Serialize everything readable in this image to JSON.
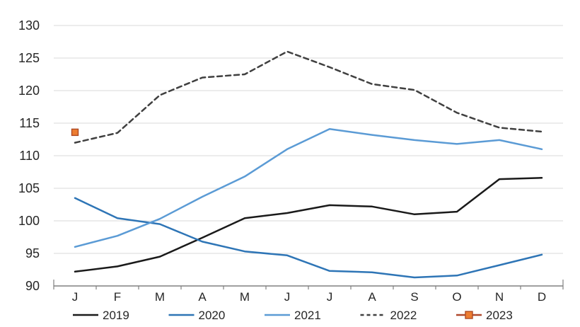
{
  "chart_data": {
    "type": "line",
    "title": "",
    "xlabel": "",
    "ylabel": "",
    "categories": [
      "J",
      "F",
      "M",
      "A",
      "M",
      "J",
      "J",
      "A",
      "S",
      "O",
      "N",
      "D"
    ],
    "series": [
      {
        "name": "2019",
        "style": "solid",
        "color": "#1a1a1a",
        "values": [
          92.2,
          93.0,
          94.5,
          97.4,
          100.4,
          101.2,
          102.4,
          102.2,
          101.0,
          101.4,
          106.4,
          106.6
        ]
      },
      {
        "name": "2020",
        "style": "solid",
        "color": "#2e75b6",
        "values": [
          103.5,
          100.4,
          99.5,
          96.8,
          95.3,
          94.7,
          92.3,
          92.1,
          91.3,
          91.6,
          93.2,
          94.8
        ]
      },
      {
        "name": "2021",
        "style": "solid",
        "color": "#5b9bd5",
        "values": [
          96.0,
          97.7,
          100.3,
          103.7,
          106.8,
          111.0,
          114.1,
          113.2,
          112.4,
          111.8,
          112.4,
          111.0
        ]
      },
      {
        "name": "2022",
        "style": "dashed",
        "color": "#404040",
        "values": [
          112.0,
          113.5,
          119.3,
          122.0,
          122.5,
          126.0,
          123.6,
          121.0,
          120.1,
          116.6,
          114.3,
          113.7
        ]
      },
      {
        "name": "2023",
        "style": "marker",
        "color": "#b0492c",
        "marker_fill": "#ed7d31",
        "marker_stroke": "#ae4a24",
        "values": [
          113.6,
          null,
          null,
          null,
          null,
          null,
          null,
          null,
          null,
          null,
          null,
          null
        ]
      }
    ],
    "ylim": [
      90,
      130
    ],
    "yticks": [
      90,
      95,
      100,
      105,
      110,
      115,
      120,
      125,
      130
    ],
    "grid": true,
    "legend_position": "bottom",
    "legend_labels": [
      "2019",
      "2020",
      "2021",
      "2022",
      "2023"
    ],
    "colors": {
      "gridline": "#d9d9d9",
      "axis": "#808080",
      "tick": "#808080",
      "text": "#262626",
      "background": "#ffffff"
    }
  }
}
